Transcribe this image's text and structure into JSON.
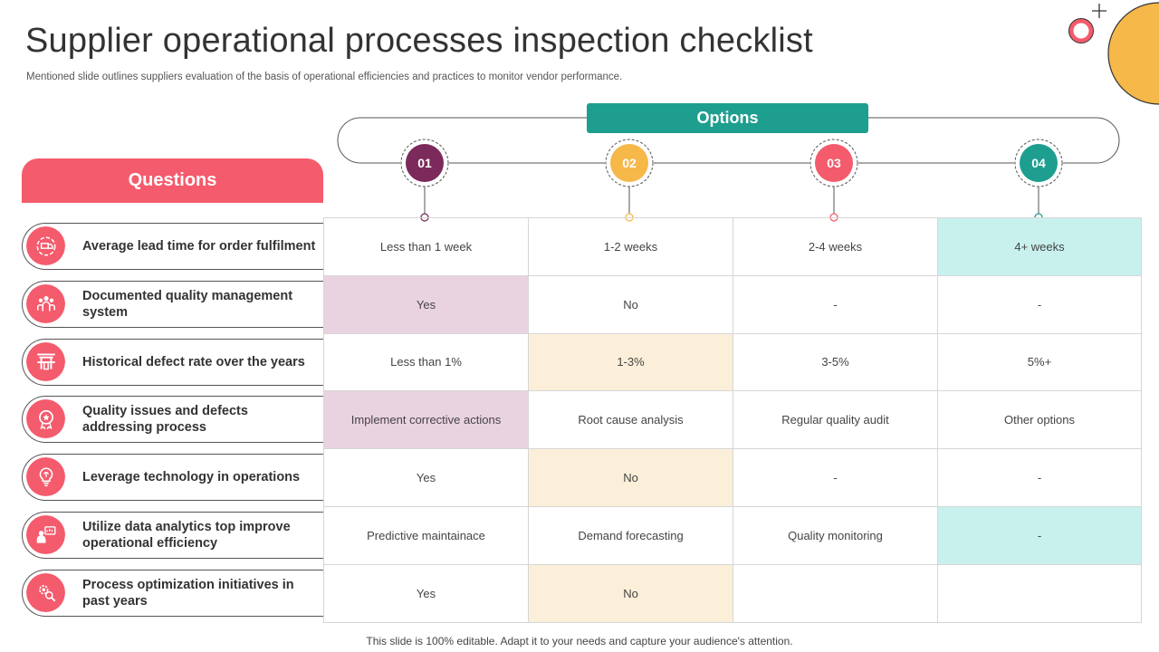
{
  "title": "Supplier operational processes inspection checklist",
  "subtitle": "Mentioned slide outlines suppliers evaluation of the basis of operational efficiencies and practices to monitor vendor performance.",
  "footer": "This slide is 100% editable. Adapt it to your needs and capture your audience's attention.",
  "questions_header": "Questions",
  "options_header": "Options",
  "options": [
    {
      "number": "01",
      "color": "#7b2a5b"
    },
    {
      "number": "02",
      "color": "#f5b849"
    },
    {
      "number": "03",
      "color": "#f45b6c"
    },
    {
      "number": "04",
      "color": "#1e9e8f"
    }
  ],
  "colors": {
    "accent": "#f45b6c",
    "teal": "#1e9e8f",
    "purple": "#7b2a5b",
    "yellow": "#f5b849"
  },
  "questions": [
    {
      "label": "Average lead time for order fulfilment",
      "icon": "delivery-truck-icon"
    },
    {
      "label": "Documented quality management system",
      "icon": "team-icon"
    },
    {
      "label": "Historical defect rate over the years",
      "icon": "gate-icon"
    },
    {
      "label": "Quality issues and defects addressing process",
      "icon": "award-badge-icon"
    },
    {
      "label": "Leverage technology in operations",
      "icon": "brain-bulb-icon"
    },
    {
      "label": "Utilize data analytics top improve operational efficiency",
      "icon": "analyst-icon"
    },
    {
      "label": "Process optimization initiatives in past years",
      "icon": "gear-search-icon"
    }
  ],
  "table": [
    [
      "Less than 1 week",
      "1-2 weeks",
      "2-4 weeks",
      "4+ weeks"
    ],
    [
      "Yes",
      "No",
      "-",
      "-"
    ],
    [
      "Less than 1%",
      "1-3%",
      "3-5%",
      "5%+"
    ],
    [
      "Implement corrective actions",
      "Root cause analysis",
      "Regular quality audit",
      "Other options"
    ],
    [
      "Yes",
      "No",
      "-",
      "-"
    ],
    [
      "Predictive maintainace",
      "Demand forecasting",
      "Quality monitoring",
      "-"
    ],
    [
      "Yes",
      "No",
      "",
      ""
    ]
  ],
  "cell_highlight": [
    [
      "",
      "",
      "",
      "teal"
    ],
    [
      "pink",
      "",
      "",
      ""
    ],
    [
      "",
      "beige",
      "",
      ""
    ],
    [
      "pink",
      "",
      "",
      ""
    ],
    [
      "",
      "beige",
      "",
      ""
    ],
    [
      "",
      "",
      "",
      "teal"
    ],
    [
      "",
      "beige",
      "",
      ""
    ]
  ],
  "highlight_colors": {
    "teal": "#c8f1ee",
    "pink": "#ead3e1",
    "beige": "#fcefd9"
  }
}
